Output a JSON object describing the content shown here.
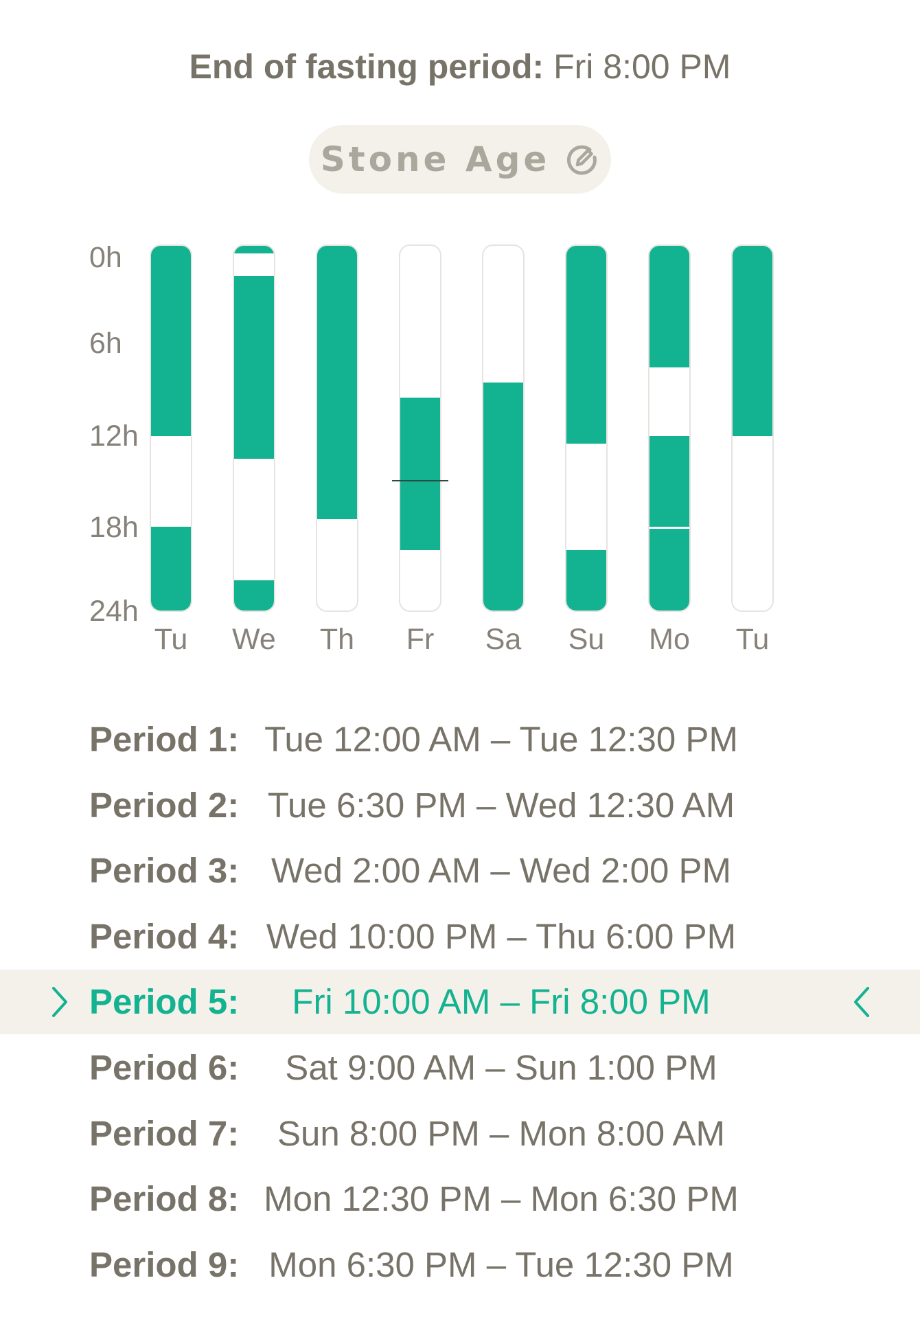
{
  "header": {
    "label": "End of fasting period:",
    "value": "Fri 8:00 PM"
  },
  "profile": {
    "name": "Stone Age",
    "edit_icon": "pencil-circle-icon"
  },
  "colors": {
    "accent": "#13b290",
    "text": "#777368",
    "highlight_bg": "#f4f1eb"
  },
  "chart_data": {
    "type": "bar",
    "y_ticks": [
      "0h",
      "6h",
      "12h",
      "18h",
      "24h"
    ],
    "y_range_hours": [
      0,
      24
    ],
    "days": [
      {
        "label": "Tu",
        "fasting": [
          [
            0,
            12.5
          ],
          [
            18.5,
            24
          ]
        ]
      },
      {
        "label": "We",
        "fasting": [
          [
            0,
            0.5
          ],
          [
            2,
            14
          ],
          [
            22,
            24
          ]
        ]
      },
      {
        "label": "Th",
        "fasting": [
          [
            0,
            18
          ]
        ]
      },
      {
        "label": "Fr",
        "fasting": [
          [
            10,
            20
          ]
        ],
        "now_hour": 15.5
      },
      {
        "label": "Sa",
        "fasting": [
          [
            9,
            24
          ]
        ]
      },
      {
        "label": "Su",
        "fasting": [
          [
            0,
            13
          ],
          [
            20,
            24
          ]
        ]
      },
      {
        "label": "Mo",
        "fasting": [
          [
            0,
            8
          ],
          [
            12.5,
            24
          ]
        ],
        "split_hour": 18.5
      },
      {
        "label": "Tu",
        "fasting": [
          [
            0,
            12.5
          ]
        ]
      }
    ]
  },
  "periods": [
    {
      "label": "Period 1:",
      "range": "Tue 12:00 AM – Tue 12:30 PM",
      "active": false
    },
    {
      "label": "Period 2:",
      "range": "Tue 6:30 PM – Wed 12:30 AM",
      "active": false
    },
    {
      "label": "Period 3:",
      "range": "Wed 2:00 AM – Wed 2:00 PM",
      "active": false
    },
    {
      "label": "Period 4:",
      "range": "Wed 10:00 PM – Thu 6:00 PM",
      "active": false
    },
    {
      "label": "Period 5:",
      "range": "Fri 10:00 AM – Fri 8:00 PM",
      "active": true
    },
    {
      "label": "Period 6:",
      "range": "Sat 9:00 AM – Sun 1:00 PM",
      "active": false
    },
    {
      "label": "Period 7:",
      "range": "Sun 8:00 PM – Mon 8:00 AM",
      "active": false
    },
    {
      "label": "Period 8:",
      "range": "Mon 12:30 PM – Mon 6:30 PM",
      "active": false
    },
    {
      "label": "Period 9:",
      "range": "Mon 6:30 PM – Tue 12:30 PM",
      "active": false
    }
  ]
}
